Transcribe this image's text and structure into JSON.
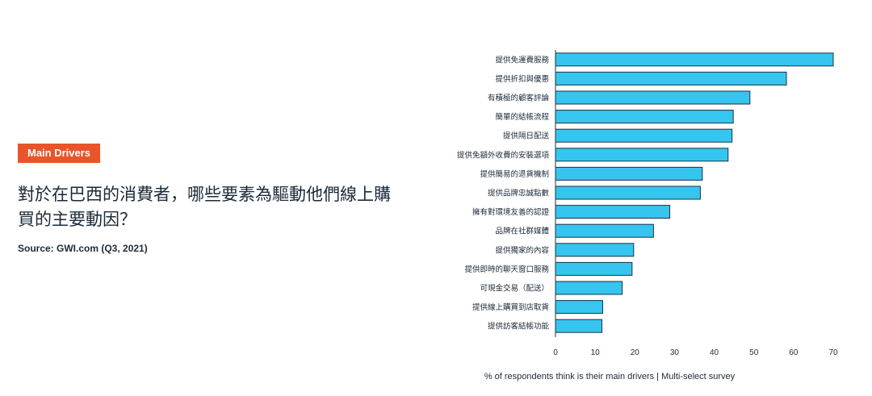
{
  "header": {
    "badge": "Main Drivers",
    "title": "對於在巴西的消費者，哪些要素為驅動他們線上購買的主要動因？",
    "source": "Source: GWI.com (Q3, 2021)"
  },
  "colors": {
    "badge": "#e8552a",
    "bar": "#36c5ee",
    "bar_outline": "#1a3344"
  },
  "chart_data": {
    "type": "bar",
    "orientation": "horizontal",
    "title": "",
    "xlabel": "% of respondents think is their main drivers | Multi-select survey",
    "ylabel": "",
    "xlim": [
      0,
      70
    ],
    "xticks": [
      0,
      10,
      20,
      30,
      40,
      50,
      60,
      70
    ],
    "grid": false,
    "categories": [
      "提供免運費服務",
      "提供折扣與優惠",
      "有積極的顧客評論",
      "簡單的結帳流程",
      "提供隔日配送",
      "提供免額外收費的安裝選項",
      "提供簡易的退貨機制",
      "提供品牌忠誠點數",
      "擁有對環境友善的認證",
      "品牌在社群媒體",
      "提供獨家的內容",
      "提供即時的聊天窗口服務",
      "可現金交易（配送）",
      "提供線上購買到店取貨",
      "提供訪客結帳功能"
    ],
    "values": [
      70,
      58.2,
      49,
      44.8,
      44.5,
      43.5,
      37,
      36.5,
      28.8,
      24.7,
      19.7,
      19.3,
      16.8,
      11.9,
      11.7
    ]
  }
}
